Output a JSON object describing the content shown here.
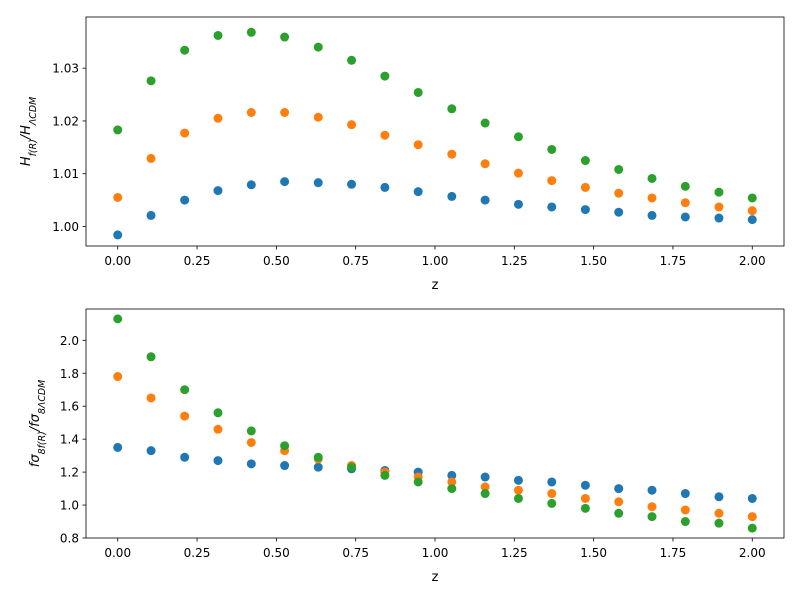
{
  "chart_data": [
    {
      "type": "scatter",
      "title": "",
      "xlabel": "z",
      "ylabel": "H_{f(R)}/H_{ΛCDM}",
      "xlim": [
        -0.1,
        2.1
      ],
      "ylim": [
        0.9963,
        1.0397
      ],
      "xticks": [
        0.0,
        0.25,
        0.5,
        0.75,
        1.0,
        1.25,
        1.5,
        1.75,
        2.0
      ],
      "xtick_labels": [
        "0.00",
        "0.25",
        "0.50",
        "0.75",
        "1.00",
        "1.25",
        "1.50",
        "1.75",
        "2.00"
      ],
      "yticks": [
        1.0,
        1.01,
        1.02,
        1.03
      ],
      "ytick_labels": [
        "1.00",
        "1.01",
        "1.02",
        "1.03"
      ],
      "grid": false,
      "x": [
        0.0,
        0.105,
        0.211,
        0.316,
        0.421,
        0.526,
        0.632,
        0.737,
        0.842,
        0.947,
        1.053,
        1.158,
        1.263,
        1.368,
        1.474,
        1.579,
        1.684,
        1.789,
        1.895,
        2.0
      ],
      "series": [
        {
          "color": "#1f77b4",
          "values": [
            0.9984,
            1.0021,
            1.005,
            1.0068,
            1.0079,
            1.0085,
            1.0083,
            1.008,
            1.0074,
            1.0066,
            1.0057,
            1.005,
            1.0042,
            1.0037,
            1.0032,
            1.0027,
            1.0021,
            1.0018,
            1.0016,
            1.0013
          ]
        },
        {
          "color": "#ff7f0e",
          "values": [
            1.0055,
            1.0129,
            1.0177,
            1.0205,
            1.0216,
            1.0216,
            1.0207,
            1.0193,
            1.0173,
            1.0155,
            1.0137,
            1.0119,
            1.0101,
            1.0087,
            1.0074,
            1.0063,
            1.0054,
            1.0045,
            1.0037,
            1.003
          ]
        },
        {
          "color": "#2ca02c",
          "values": [
            1.0183,
            1.0276,
            1.0334,
            1.0362,
            1.0368,
            1.0359,
            1.034,
            1.0315,
            1.0285,
            1.0254,
            1.0223,
            1.0196,
            1.017,
            1.0146,
            1.0125,
            1.0108,
            1.0091,
            1.0076,
            1.0065,
            1.0054
          ]
        }
      ]
    },
    {
      "type": "scatter",
      "title": "",
      "xlabel": "z",
      "ylabel": "fσ_{8f(R)}/fσ_{8ΛCDM}",
      "xlim": [
        -0.1,
        2.1
      ],
      "ylim": [
        0.8,
        2.19
      ],
      "xticks": [
        0.0,
        0.25,
        0.5,
        0.75,
        1.0,
        1.25,
        1.5,
        1.75,
        2.0
      ],
      "xtick_labels": [
        "0.00",
        "0.25",
        "0.50",
        "0.75",
        "1.00",
        "1.25",
        "1.50",
        "1.75",
        "2.00"
      ],
      "yticks": [
        0.8,
        1.0,
        1.2,
        1.4,
        1.6,
        1.8,
        2.0
      ],
      "ytick_labels": [
        "0.8",
        "1.0",
        "1.2",
        "1.4",
        "1.6",
        "1.8",
        "2.0"
      ],
      "grid": false,
      "x": [
        0.0,
        0.105,
        0.211,
        0.316,
        0.421,
        0.526,
        0.632,
        0.737,
        0.842,
        0.947,
        1.053,
        1.158,
        1.263,
        1.368,
        1.474,
        1.579,
        1.684,
        1.789,
        1.895,
        2.0
      ],
      "series": [
        {
          "color": "#1f77b4",
          "values": [
            1.35,
            1.33,
            1.29,
            1.27,
            1.25,
            1.24,
            1.23,
            1.22,
            1.21,
            1.2,
            1.18,
            1.17,
            1.15,
            1.14,
            1.12,
            1.1,
            1.09,
            1.07,
            1.05,
            1.04
          ]
        },
        {
          "color": "#ff7f0e",
          "values": [
            1.78,
            1.65,
            1.54,
            1.46,
            1.38,
            1.33,
            1.28,
            1.24,
            1.2,
            1.17,
            1.14,
            1.11,
            1.09,
            1.07,
            1.04,
            1.02,
            0.99,
            0.97,
            0.95,
            0.93
          ]
        },
        {
          "color": "#2ca02c",
          "values": [
            2.13,
            1.9,
            1.7,
            1.56,
            1.45,
            1.36,
            1.29,
            1.23,
            1.18,
            1.14,
            1.1,
            1.07,
            1.04,
            1.01,
            0.98,
            0.95,
            0.93,
            0.9,
            0.89,
            0.86
          ]
        }
      ]
    }
  ]
}
